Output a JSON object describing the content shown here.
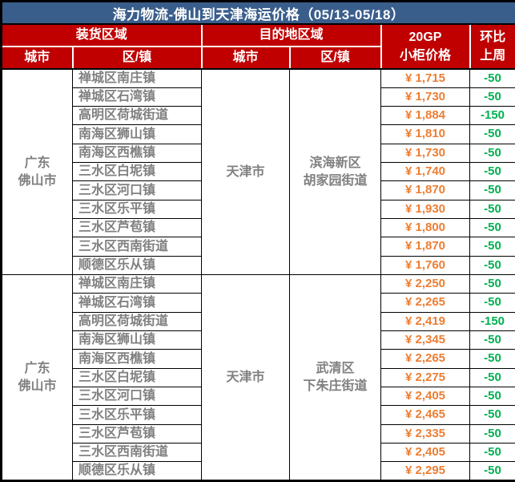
{
  "title": "海力物流-佛山到天津海运价格（05/13-05/18）",
  "header": {
    "loading_region": "装货区域",
    "destination_region": "目的地区域",
    "city": "城市",
    "district": "区/镇",
    "price_line1": "20GP",
    "price_line2": "小柜价格",
    "wow_line1": "环比",
    "wow_line2": "上周"
  },
  "colors": {
    "title_bar_bg": "#3A5E8C",
    "title_text": "#FFFFFF",
    "header_bg": "#C00000",
    "header_text": "#FFFFFF",
    "body_text": "#808080",
    "price_text": "#ED7D31",
    "wow_text": "#00B050",
    "grid_line": "#000000"
  },
  "blocks": [
    {
      "origin": {
        "line1": "广东",
        "line2": "佛山市"
      },
      "dest_city": "天津市",
      "dest_district": {
        "line1": "滨海新区",
        "line2": "胡家园街道"
      },
      "rows": [
        {
          "town": "禅城区南庄镇",
          "price": "¥ 1,715",
          "wow": "-50"
        },
        {
          "town": "禅城区石湾镇",
          "price": "¥ 1,730",
          "wow": "-50"
        },
        {
          "town": "高明区荷城街道",
          "price": "¥ 1,884",
          "wow": "-150"
        },
        {
          "town": "南海区狮山镇",
          "price": "¥ 1,810",
          "wow": "-50"
        },
        {
          "town": "南海区西樵镇",
          "price": "¥ 1,730",
          "wow": "-50"
        },
        {
          "town": "三水区白坭镇",
          "price": "¥ 1,740",
          "wow": "-50"
        },
        {
          "town": "三水区河口镇",
          "price": "¥ 1,870",
          "wow": "-50"
        },
        {
          "town": "三水区乐平镇",
          "price": "¥ 1,930",
          "wow": "-50"
        },
        {
          "town": "三水区芦苞镇",
          "price": "¥ 1,800",
          "wow": "-50"
        },
        {
          "town": "三水区西南街道",
          "price": "¥ 1,870",
          "wow": "-50"
        },
        {
          "town": "顺德区乐从镇",
          "price": "¥ 1,760",
          "wow": "-50"
        }
      ]
    },
    {
      "origin": {
        "line1": "广东",
        "line2": "佛山市"
      },
      "dest_city": "天津市",
      "dest_district": {
        "line1": "武清区",
        "line2": "下朱庄街道"
      },
      "rows": [
        {
          "town": "禅城区南庄镇",
          "price": "¥ 2,250",
          "wow": "-50"
        },
        {
          "town": "禅城区石湾镇",
          "price": "¥ 2,265",
          "wow": "-50"
        },
        {
          "town": "高明区荷城街道",
          "price": "¥ 2,419",
          "wow": "-150"
        },
        {
          "town": "南海区狮山镇",
          "price": "¥ 2,345",
          "wow": "-50"
        },
        {
          "town": "南海区西樵镇",
          "price": "¥ 2,265",
          "wow": "-50"
        },
        {
          "town": "三水区白坭镇",
          "price": "¥ 2,275",
          "wow": "-50"
        },
        {
          "town": "三水区河口镇",
          "price": "¥ 2,405",
          "wow": "-50"
        },
        {
          "town": "三水区乐平镇",
          "price": "¥ 2,465",
          "wow": "-50"
        },
        {
          "town": "三水区芦苞镇",
          "price": "¥ 2,335",
          "wow": "-50"
        },
        {
          "town": "三水区西南街道",
          "price": "¥ 2,405",
          "wow": "-50"
        },
        {
          "town": "顺德区乐从镇",
          "price": "¥ 2,295",
          "wow": "-50"
        }
      ]
    }
  ]
}
